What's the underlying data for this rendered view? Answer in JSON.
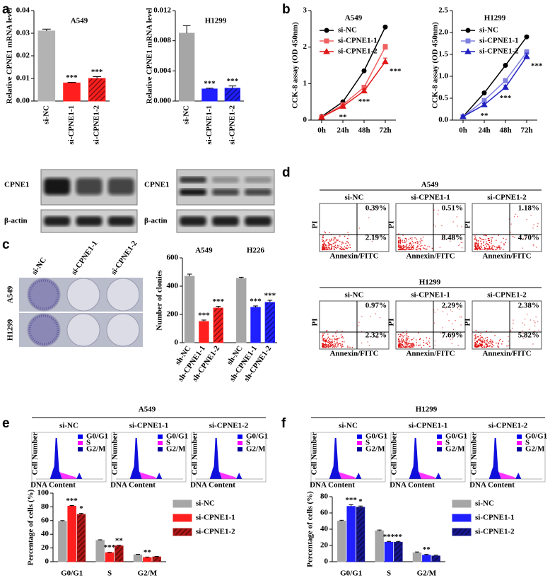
{
  "panel_labels": [
    "a",
    "b",
    "c",
    "d",
    "e",
    "f"
  ],
  "chart_data": [
    {
      "type": "bar",
      "title": "A549",
      "y_label": "Relative CPNE1 mRNA level",
      "categories": [
        "si-NC",
        "si-CPNE1-1",
        "si-CPNE1-2"
      ],
      "values": [
        0.031,
        0.008,
        0.01
      ],
      "errors": [
        0.0008,
        0.0003,
        0.0008
      ],
      "colors": [
        "#b3b3b3",
        "#ff1f1f",
        "#ff1f1f"
      ],
      "hatched": [
        false,
        false,
        true
      ],
      "annotations": [
        null,
        "***",
        "***"
      ],
      "ylim": [
        0,
        0.04
      ],
      "yticks": [
        {
          "value": 0,
          "label": "0.00"
        },
        0.01,
        0.02,
        0.03,
        0.04
      ]
    },
    {
      "type": "bar",
      "title": "H1299",
      "y_label": "Relative CPNE1 mRNA level",
      "categories": [
        "si-NC",
        "si-CPNE1-1",
        "si-CPNE1-2"
      ],
      "values": [
        0.009,
        0.0016,
        0.0017
      ],
      "errors": [
        0.001,
        0.0001,
        0.0003
      ],
      "colors": [
        "#a6a6a6",
        "#1f1fff",
        "#1f1fff"
      ],
      "hatched": [
        false,
        false,
        true
      ],
      "annotations": [
        null,
        "***",
        "***"
      ],
      "ylim": [
        0,
        0.012
      ],
      "yticks": [
        {
          "value": 0,
          "label": "0.000"
        },
        0.004,
        0.008,
        0.012
      ]
    },
    {
      "type": "line",
      "title": "A549",
      "y_label": "CCK-8 assay (OD 450nm)",
      "categories": [
        "0h",
        "24h",
        "48h",
        "72h"
      ],
      "series": [
        {
          "name": "si-NC",
          "color": "#000000",
          "marker": "circle",
          "values": [
            0.1,
            0.5,
            1.35,
            2.55
          ],
          "errors": [
            0.02,
            0.03,
            0.03,
            0.03
          ]
        },
        {
          "name": "si-CPNE1-1",
          "color": "#f06060",
          "marker": "square",
          "values": [
            0.08,
            0.42,
            0.9,
            2.0
          ],
          "errors": [
            0.02,
            0.03,
            0.05,
            0.08
          ]
        },
        {
          "name": "si-CPNE1-2",
          "color": "#e01818",
          "marker": "triangle",
          "values": [
            0.08,
            0.38,
            0.8,
            1.6
          ],
          "errors": [
            0.02,
            0.03,
            0.05,
            0.1
          ]
        }
      ],
      "annotations": [
        null,
        "**",
        "***",
        "***"
      ],
      "ylim": [
        0,
        3
      ],
      "yticks": [
        0,
        1,
        2,
        3
      ]
    },
    {
      "type": "line",
      "title": "H1299",
      "y_label": "CCK-8 assay (OD 450nm)",
      "categories": [
        "0h",
        "24h",
        "48h",
        "72h"
      ],
      "series": [
        {
          "name": "si-NC",
          "color": "#000000",
          "marker": "circle",
          "values": [
            0.08,
            0.62,
            1.25,
            1.9
          ],
          "errors": [
            0.02,
            0.03,
            0.03,
            0.03
          ]
        },
        {
          "name": "si-CPNE1-1",
          "color": "#8080e0",
          "marker": "square",
          "values": [
            0.08,
            0.45,
            0.9,
            1.55
          ],
          "errors": [
            0.02,
            0.03,
            0.05,
            0.06
          ]
        },
        {
          "name": "si-CPNE1-2",
          "color": "#2020c0",
          "marker": "triangle",
          "values": [
            0.08,
            0.35,
            0.75,
            1.45
          ],
          "errors": [
            0.02,
            0.03,
            0.05,
            0.08
          ]
        }
      ],
      "annotations": [
        null,
        "**",
        "***",
        "***"
      ],
      "ylim": [
        0,
        2.5
      ],
      "yticks": [
        {
          "value": 0,
          "label": "0.0"
        },
        0.5,
        {
          "value": 1,
          "label": "1.0"
        },
        1.5,
        {
          "value": 2,
          "label": "2.0"
        },
        2.5
      ]
    },
    {
      "type": "bar",
      "y_label": "Number of clonies",
      "group_labels": [
        "A549",
        "H226"
      ],
      "categories": [
        "sh-NC",
        "sh-CPNE1-1",
        "sh-CPNE1-2",
        "sh-NC",
        "sh-CPNE1-1",
        "sh-CPNE1-2"
      ],
      "values": [
        470,
        150,
        245,
        455,
        250,
        285
      ],
      "errors": [
        15,
        10,
        12,
        8,
        10,
        15
      ],
      "colors": [
        "#a6a6a6",
        "#ff1f1f",
        "#ff1f1f",
        "#a6a6a6",
        "#1f1fff",
        "#1f1fff"
      ],
      "hatched": [
        false,
        false,
        true,
        false,
        false,
        true
      ],
      "annotations": [
        null,
        "***",
        "***",
        null,
        "***",
        "***"
      ],
      "ylim": [
        0,
        600
      ],
      "yticks": [
        0,
        200,
        400,
        600
      ]
    },
    {
      "type": "grouped_bar",
      "y_label": "Percentage of cells (%)",
      "categories": [
        "G0/G1",
        "S",
        "G2/M"
      ],
      "series": [
        {
          "name": "si-NC",
          "color": "#a6a6a6",
          "hatched": false,
          "values": [
            59,
            31,
            10
          ],
          "errors": [
            1,
            1,
            0.8
          ]
        },
        {
          "name": "si-CPNE1-1",
          "color": "#ff1f1f",
          "hatched": false,
          "values": [
            81,
            13,
            6
          ],
          "errors": [
            1,
            0.8,
            0.8
          ],
          "annotations": [
            "***",
            "***",
            "**"
          ]
        },
        {
          "name": "si-CPNE1-2",
          "color": "#b01515",
          "hatched": true,
          "values": [
            69,
            23,
            7
          ],
          "errors": [
            1.5,
            1,
            0.8
          ],
          "annotations": [
            "*",
            "**",
            null
          ]
        }
      ],
      "ylim": [
        0,
        100
      ],
      "yticks": [
        0,
        20,
        40,
        60,
        80,
        100
      ]
    },
    {
      "type": "grouped_bar",
      "y_label": "Percentage of cells (%)",
      "categories": [
        "G0/G1",
        "S",
        "G2/M"
      ],
      "series": [
        {
          "name": "si-NC",
          "color": "#a6a6a6",
          "hatched": false,
          "values": [
            50,
            38,
            11
          ],
          "errors": [
            1,
            1,
            1
          ]
        },
        {
          "name": "si-CPNE1-1",
          "color": "#1f1fff",
          "hatched": false,
          "values": [
            68,
            24,
            8
          ],
          "errors": [
            2,
            1,
            1
          ],
          "annotations": [
            "***",
            "***",
            "**"
          ]
        },
        {
          "name": "si-CPNE1-2",
          "color": "#15158f",
          "hatched": true,
          "values": [
            67,
            24,
            7
          ],
          "errors": [
            1.5,
            1,
            1
          ],
          "annotations": [
            "*",
            "**",
            null
          ]
        }
      ],
      "ylim": [
        0,
        80
      ],
      "yticks": [
        0,
        20,
        40,
        60,
        80
      ]
    }
  ],
  "blots": [
    {
      "labels": [
        "CPNE1",
        "β-actin"
      ]
    },
    {
      "labels": [
        "CPNE1",
        "β-actin"
      ]
    }
  ],
  "colony": {
    "columns": [
      "si-NC",
      "si-CPNE1-1",
      "si-CPNE1-2"
    ],
    "rows": [
      "A549",
      "H1299"
    ]
  },
  "flow": {
    "x_label": "Annexin/FITC",
    "y_label": "PI",
    "panels": [
      {
        "title": "A549",
        "columns": [
          "si-NC",
          "si-CPNE1-1",
          "si-CPNE1-2"
        ],
        "quadrants": [
          [
            "0.39%",
            "2.19%"
          ],
          [
            "0.51%",
            "8.48%"
          ],
          [
            "1.18%",
            "4.70%"
          ]
        ]
      },
      {
        "title": "H1299",
        "columns": [
          "si-NC",
          "si-CPNE1-1",
          "si-CPNE1-2"
        ],
        "quadrants": [
          [
            "0.97%",
            "2.32%"
          ],
          [
            "2.29%",
            "7.69%"
          ],
          [
            "2.38%",
            "5.82%"
          ]
        ]
      }
    ]
  },
  "cell_cycle": {
    "x_label": "DNA Content",
    "y_label": "Cell Number",
    "phases": [
      "G0/G1",
      "S",
      "G2/M"
    ],
    "panels": [
      {
        "title": "A549",
        "columns": [
          "si-NC",
          "si-CPNE1-1",
          "si-CPNE1-2"
        ]
      },
      {
        "title": "H1299",
        "columns": [
          "si-NC",
          "si-CPNE1-1",
          "si-CPNE1-2"
        ]
      }
    ]
  }
}
